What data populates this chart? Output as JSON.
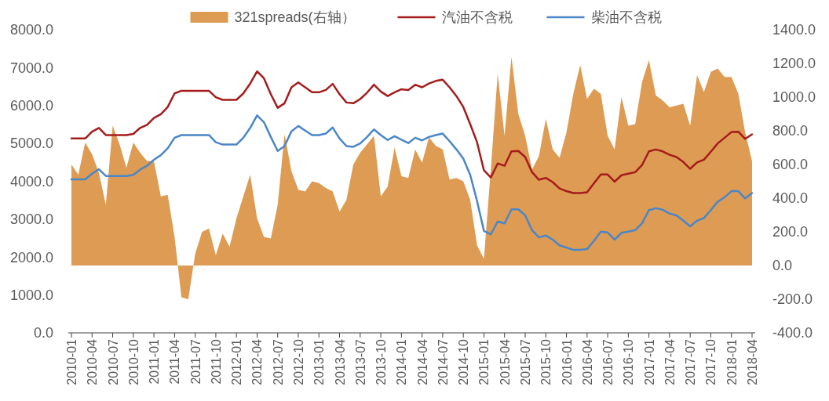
{
  "chart_data": {
    "type": "line",
    "categories": [
      "2010-01",
      null,
      null,
      "2010-04",
      null,
      null,
      "2010-07",
      null,
      null,
      "2010-10",
      null,
      null,
      "2011-01",
      null,
      null,
      "2011-04",
      null,
      null,
      "2011-07",
      null,
      null,
      "2011-10",
      null,
      null,
      "2012-01",
      null,
      null,
      "2012-04",
      null,
      null,
      "2012-07",
      null,
      null,
      "2012-10",
      null,
      null,
      "2013-01",
      null,
      null,
      "2013-04",
      null,
      null,
      "2013-07",
      null,
      null,
      "2013-10",
      null,
      null,
      "2014-01",
      null,
      null,
      "2014-04",
      null,
      null,
      "2014-07",
      null,
      null,
      "2014-10",
      null,
      null,
      "2015-01",
      null,
      null,
      "2015-04",
      null,
      null,
      "2015-07",
      null,
      null,
      "2015-10",
      null,
      null,
      "2016-01",
      null,
      null,
      "2016-04",
      null,
      null,
      "2016-07",
      null,
      null,
      "2016-10",
      null,
      null,
      "2017-01",
      null,
      null,
      "2017-04",
      null,
      null,
      "2017-07",
      null,
      null,
      "2017-10",
      null,
      null,
      "2018-01",
      null,
      null,
      "2018-04"
    ],
    "series": [
      {
        "name": "321spreads(右轴）",
        "type": "area",
        "axis": "y2",
        "color": "#dd9b53",
        "values": [
          600,
          540,
          730,
          660,
          550,
          360,
          830,
          720,
          580,
          730,
          670,
          620,
          620,
          410,
          420,
          170,
          -190,
          -200,
          70,
          200,
          220,
          60,
          190,
          110,
          280,
          410,
          540,
          280,
          170,
          160,
          360,
          780,
          560,
          450,
          440,
          500,
          490,
          460,
          440,
          320,
          390,
          600,
          670,
          720,
          770,
          410,
          470,
          700,
          530,
          520,
          690,
          610,
          760,
          710,
          690,
          510,
          520,
          500,
          390,
          120,
          40,
          570,
          1140,
          770,
          1240,
          900,
          770,
          570,
          650,
          870,
          690,
          640,
          790,
          1020,
          1190,
          990,
          1050,
          1020,
          770,
          690,
          1000,
          830,
          840,
          1090,
          1220,
          1010,
          980,
          940,
          950,
          960,
          830,
          1130,
          1030,
          1150,
          1170,
          1120,
          1120,
          1020,
          790,
          620
        ]
      },
      {
        "name": "汽油不含税",
        "color": "#a51c1c",
        "values": [
          5130,
          5130,
          5130,
          5310,
          5410,
          5220,
          5220,
          5220,
          5220,
          5250,
          5410,
          5490,
          5670,
          5770,
          5960,
          6320,
          6390,
          6390,
          6390,
          6390,
          6390,
          6220,
          6150,
          6150,
          6150,
          6320,
          6580,
          6900,
          6720,
          6300,
          5940,
          6060,
          6480,
          6610,
          6480,
          6350,
          6350,
          6410,
          6570,
          6300,
          6080,
          6060,
          6170,
          6340,
          6550,
          6370,
          6250,
          6350,
          6430,
          6410,
          6550,
          6480,
          6580,
          6650,
          6680,
          6480,
          6250,
          5960,
          5510,
          5030,
          4290,
          4100,
          4470,
          4410,
          4790,
          4800,
          4640,
          4240,
          4040,
          4090,
          3980,
          3810,
          3740,
          3690,
          3690,
          3710,
          3950,
          4180,
          4180,
          3990,
          4160,
          4200,
          4240,
          4430,
          4790,
          4840,
          4790,
          4700,
          4640,
          4510,
          4330,
          4500,
          4570,
          4780,
          5000,
          5150,
          5300,
          5310,
          5120,
          5240
        ]
      },
      {
        "name": "柴油不含税",
        "color": "#4a86c8",
        "values": [
          4050,
          4050,
          4050,
          4200,
          4320,
          4140,
          4140,
          4140,
          4140,
          4170,
          4310,
          4410,
          4570,
          4690,
          4870,
          5150,
          5220,
          5220,
          5220,
          5220,
          5220,
          5030,
          4970,
          4970,
          4970,
          5150,
          5410,
          5740,
          5560,
          5170,
          4800,
          4930,
          5320,
          5460,
          5340,
          5220,
          5220,
          5260,
          5420,
          5130,
          4930,
          4910,
          5000,
          5170,
          5370,
          5220,
          5090,
          5190,
          5100,
          5010,
          5150,
          5080,
          5170,
          5220,
          5260,
          5060,
          4840,
          4600,
          4170,
          3480,
          2690,
          2600,
          2940,
          2890,
          3260,
          3260,
          3100,
          2710,
          2520,
          2570,
          2460,
          2310,
          2250,
          2190,
          2190,
          2210,
          2430,
          2670,
          2650,
          2460,
          2640,
          2670,
          2710,
          2890,
          3240,
          3290,
          3250,
          3150,
          3100,
          2960,
          2810,
          2960,
          3030,
          3240,
          3460,
          3580,
          3740,
          3740,
          3550,
          3690
        ]
      }
    ],
    "ylim": [
      0,
      8000
    ],
    "yticks": [
      {
        "value": 0,
        "label": "0.0"
      },
      {
        "value": 1000,
        "label": "1000.0"
      },
      {
        "value": 2000,
        "label": "2000.0"
      },
      {
        "value": 3000,
        "label": "3000.0"
      },
      {
        "value": 4000,
        "label": "4000.0"
      },
      {
        "value": 5000,
        "label": "5000.0"
      },
      {
        "value": 6000,
        "label": "6000.0"
      },
      {
        "value": 7000,
        "label": "7000.0"
      },
      {
        "value": 8000,
        "label": "8000.0"
      }
    ],
    "y2lim": [
      -400,
      1400
    ],
    "y2ticks": [
      {
        "value": -400,
        "label": "-400.0"
      },
      {
        "value": -200,
        "label": "-200.0"
      },
      {
        "value": 0,
        "label": "0.0"
      },
      {
        "value": 200,
        "label": "200.0"
      },
      {
        "value": 400,
        "label": "400.0"
      },
      {
        "value": 600,
        "label": "600.0"
      },
      {
        "value": 800,
        "label": "800.0"
      },
      {
        "value": 1000,
        "label": "1000.0"
      },
      {
        "value": 1200,
        "label": "1200.0"
      },
      {
        "value": 1400,
        "label": "1400.0"
      }
    ],
    "grid": false,
    "legend": "top"
  }
}
